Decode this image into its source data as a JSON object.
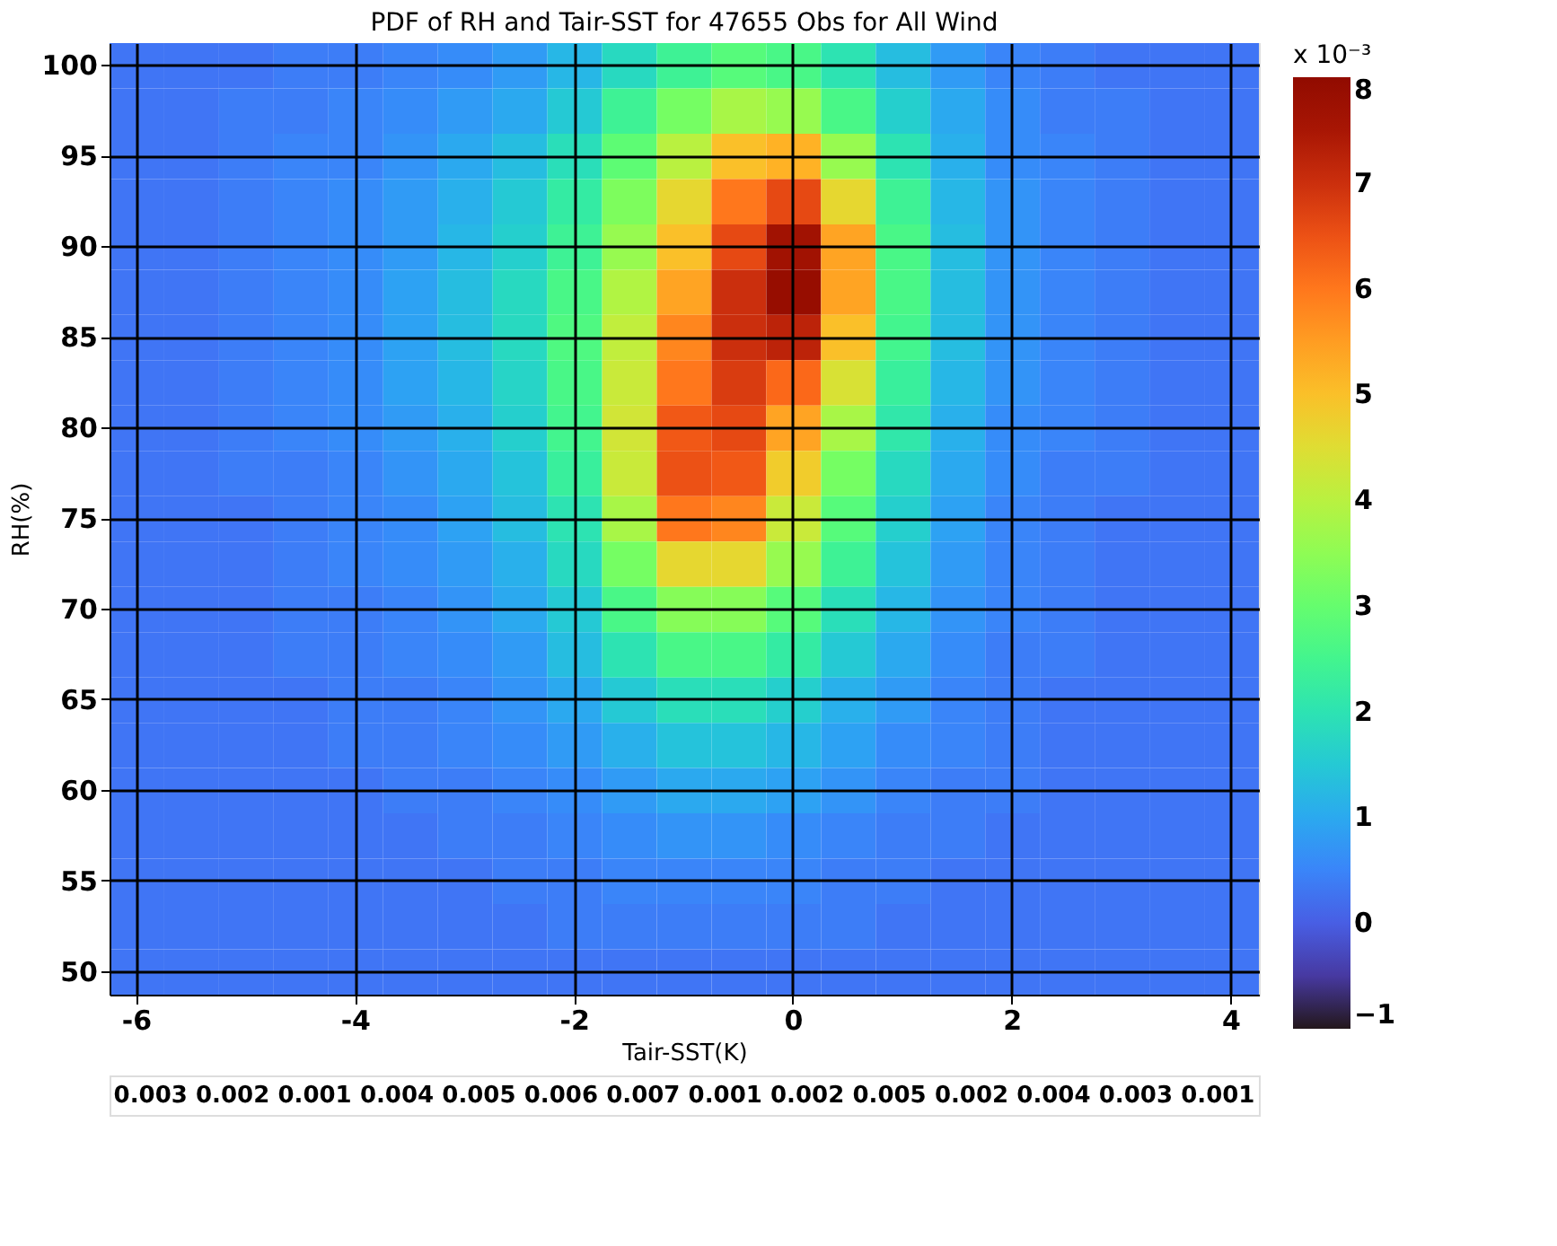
{
  "chart_data": {
    "type": "heatmap",
    "title": "PDF of RH and Tair-SST for 47655 Obs for All Wind",
    "xlabel": "Tair-SST(K)",
    "ylabel": "RH(%)",
    "clabel": "x 10⁻³",
    "clim": [
      -1,
      8
    ],
    "cticks": [
      -1,
      0,
      1,
      2,
      3,
      4,
      5,
      6,
      7,
      8
    ],
    "grid": true,
    "categories": [
      "-6",
      null,
      null,
      null,
      "-4",
      null,
      null,
      null,
      "-2",
      null,
      null,
      null,
      "0",
      null,
      null,
      null,
      "2",
      null,
      null,
      null,
      "4"
    ],
    "y_categories": [
      "100",
      null,
      "95",
      null,
      "90",
      null,
      "85",
      null,
      "80",
      null,
      "75",
      null,
      "70",
      null,
      "65",
      null,
      "60",
      null,
      "55",
      null,
      "50"
    ],
    "cells": [
      [
        0.3,
        0.3,
        0.3,
        0.4,
        0.4,
        0.5,
        0.6,
        0.8,
        1.2,
        1.8,
        2.4,
        2.8,
        2.6,
        2.0,
        1.3,
        0.8,
        0.5,
        0.4,
        0.3,
        0.3,
        0.3
      ],
      [
        0.3,
        0.3,
        0.4,
        0.4,
        0.5,
        0.6,
        0.8,
        1.0,
        1.5,
        2.4,
        3.2,
        3.8,
        3.6,
        2.6,
        1.6,
        1.0,
        0.6,
        0.4,
        0.4,
        0.3,
        0.3
      ],
      [
        0.3,
        0.3,
        0.4,
        0.5,
        0.5,
        0.7,
        1.0,
        1.3,
        1.9,
        2.9,
        4.0,
        5.0,
        5.2,
        3.6,
        2.0,
        1.1,
        0.6,
        0.5,
        0.4,
        0.3,
        0.3
      ],
      [
        0.3,
        0.3,
        0.4,
        0.5,
        0.6,
        0.8,
        1.1,
        1.5,
        2.2,
        3.3,
        4.6,
        6.0,
        6.6,
        4.6,
        2.4,
        1.2,
        0.7,
        0.5,
        0.4,
        0.3,
        0.3
      ],
      [
        0.3,
        0.3,
        0.4,
        0.5,
        0.6,
        0.8,
        1.2,
        1.6,
        2.4,
        3.6,
        5.0,
        6.6,
        7.6,
        5.4,
        2.6,
        1.3,
        0.7,
        0.5,
        0.4,
        0.3,
        0.3
      ],
      [
        0.3,
        0.3,
        0.4,
        0.5,
        0.6,
        0.9,
        1.3,
        1.8,
        2.6,
        3.9,
        5.4,
        7.0,
        7.8,
        5.4,
        2.6,
        1.3,
        0.7,
        0.5,
        0.4,
        0.3,
        0.3
      ],
      [
        0.3,
        0.3,
        0.4,
        0.5,
        0.6,
        0.9,
        1.3,
        1.8,
        2.7,
        4.1,
        5.8,
        7.0,
        7.2,
        5.0,
        2.5,
        1.3,
        0.7,
        0.5,
        0.4,
        0.3,
        0.3
      ],
      [
        0.3,
        0.3,
        0.4,
        0.5,
        0.6,
        0.9,
        1.2,
        1.7,
        2.6,
        4.2,
        6.0,
        6.8,
        6.2,
        4.4,
        2.3,
        1.2,
        0.7,
        0.5,
        0.4,
        0.3,
        0.3
      ],
      [
        0.3,
        0.3,
        0.4,
        0.5,
        0.6,
        0.8,
        1.1,
        1.6,
        2.5,
        4.3,
        6.4,
        6.6,
        5.4,
        3.8,
        2.1,
        1.1,
        0.6,
        0.5,
        0.4,
        0.3,
        0.3
      ],
      [
        0.3,
        0.3,
        0.4,
        0.4,
        0.5,
        0.7,
        1.0,
        1.4,
        2.3,
        4.2,
        6.5,
        6.4,
        4.8,
        3.2,
        1.8,
        1.0,
        0.6,
        0.4,
        0.4,
        0.3,
        0.3
      ],
      [
        0.3,
        0.3,
        0.3,
        0.4,
        0.5,
        0.6,
        0.9,
        1.3,
        2.0,
        3.8,
        6.0,
        5.8,
        4.2,
        2.8,
        1.6,
        0.9,
        0.5,
        0.4,
        0.3,
        0.3,
        0.3
      ],
      [
        0.3,
        0.3,
        0.3,
        0.4,
        0.5,
        0.6,
        0.8,
        1.1,
        1.8,
        3.2,
        4.6,
        4.6,
        3.6,
        2.4,
        1.4,
        0.8,
        0.5,
        0.4,
        0.3,
        0.3,
        0.3
      ],
      [
        0.3,
        0.3,
        0.3,
        0.4,
        0.4,
        0.5,
        0.7,
        1.0,
        1.5,
        2.6,
        3.4,
        3.4,
        2.8,
        1.9,
        1.2,
        0.7,
        0.5,
        0.4,
        0.3,
        0.3,
        0.3
      ],
      [
        0.3,
        0.3,
        0.3,
        0.4,
        0.4,
        0.5,
        0.6,
        0.8,
        1.3,
        2.0,
        2.6,
        2.6,
        2.2,
        1.5,
        1.0,
        0.6,
        0.4,
        0.4,
        0.3,
        0.3,
        0.3
      ],
      [
        0.3,
        0.3,
        0.3,
        0.3,
        0.4,
        0.4,
        0.5,
        0.7,
        1.0,
        1.5,
        1.9,
        1.9,
        1.6,
        1.1,
        0.8,
        0.5,
        0.4,
        0.3,
        0.3,
        0.3,
        0.3
      ],
      [
        0.3,
        0.3,
        0.3,
        0.3,
        0.4,
        0.4,
        0.5,
        0.6,
        0.8,
        1.1,
        1.4,
        1.4,
        1.2,
        0.9,
        0.6,
        0.5,
        0.4,
        0.3,
        0.3,
        0.3,
        0.3
      ],
      [
        0.3,
        0.3,
        0.3,
        0.3,
        0.3,
        0.4,
        0.4,
        0.5,
        0.6,
        0.8,
        1.0,
        1.0,
        0.9,
        0.7,
        0.5,
        0.4,
        0.4,
        0.3,
        0.3,
        0.3,
        0.3
      ],
      [
        0.3,
        0.3,
        0.3,
        0.3,
        0.3,
        0.3,
        0.4,
        0.4,
        0.5,
        0.6,
        0.7,
        0.7,
        0.6,
        0.5,
        0.4,
        0.4,
        0.3,
        0.3,
        0.3,
        0.3,
        0.3
      ],
      [
        0.3,
        0.3,
        0.3,
        0.3,
        0.3,
        0.3,
        0.3,
        0.4,
        0.4,
        0.5,
        0.5,
        0.5,
        0.5,
        0.4,
        0.4,
        0.3,
        0.3,
        0.3,
        0.3,
        0.3,
        0.3
      ],
      [
        0.3,
        0.3,
        0.3,
        0.3,
        0.3,
        0.3,
        0.3,
        0.3,
        0.4,
        0.4,
        0.4,
        0.4,
        0.4,
        0.4,
        0.3,
        0.3,
        0.3,
        0.3,
        0.3,
        0.3,
        0.3
      ],
      [
        0.3,
        0.3,
        0.3,
        0.3,
        0.3,
        0.3,
        0.3,
        0.3,
        0.3,
        0.3,
        0.3,
        0.3,
        0.3,
        0.3,
        0.3,
        0.3,
        0.3,
        0.3,
        0.3,
        0.3,
        0.3
      ]
    ],
    "annotations": [
      "0.003",
      "0.002",
      "0.001",
      "0.004",
      "0.005",
      "0.006",
      "0.007",
      "0.001",
      "0.002",
      "0.005",
      "0.002",
      "0.004",
      "0.003",
      "0.001"
    ]
  }
}
